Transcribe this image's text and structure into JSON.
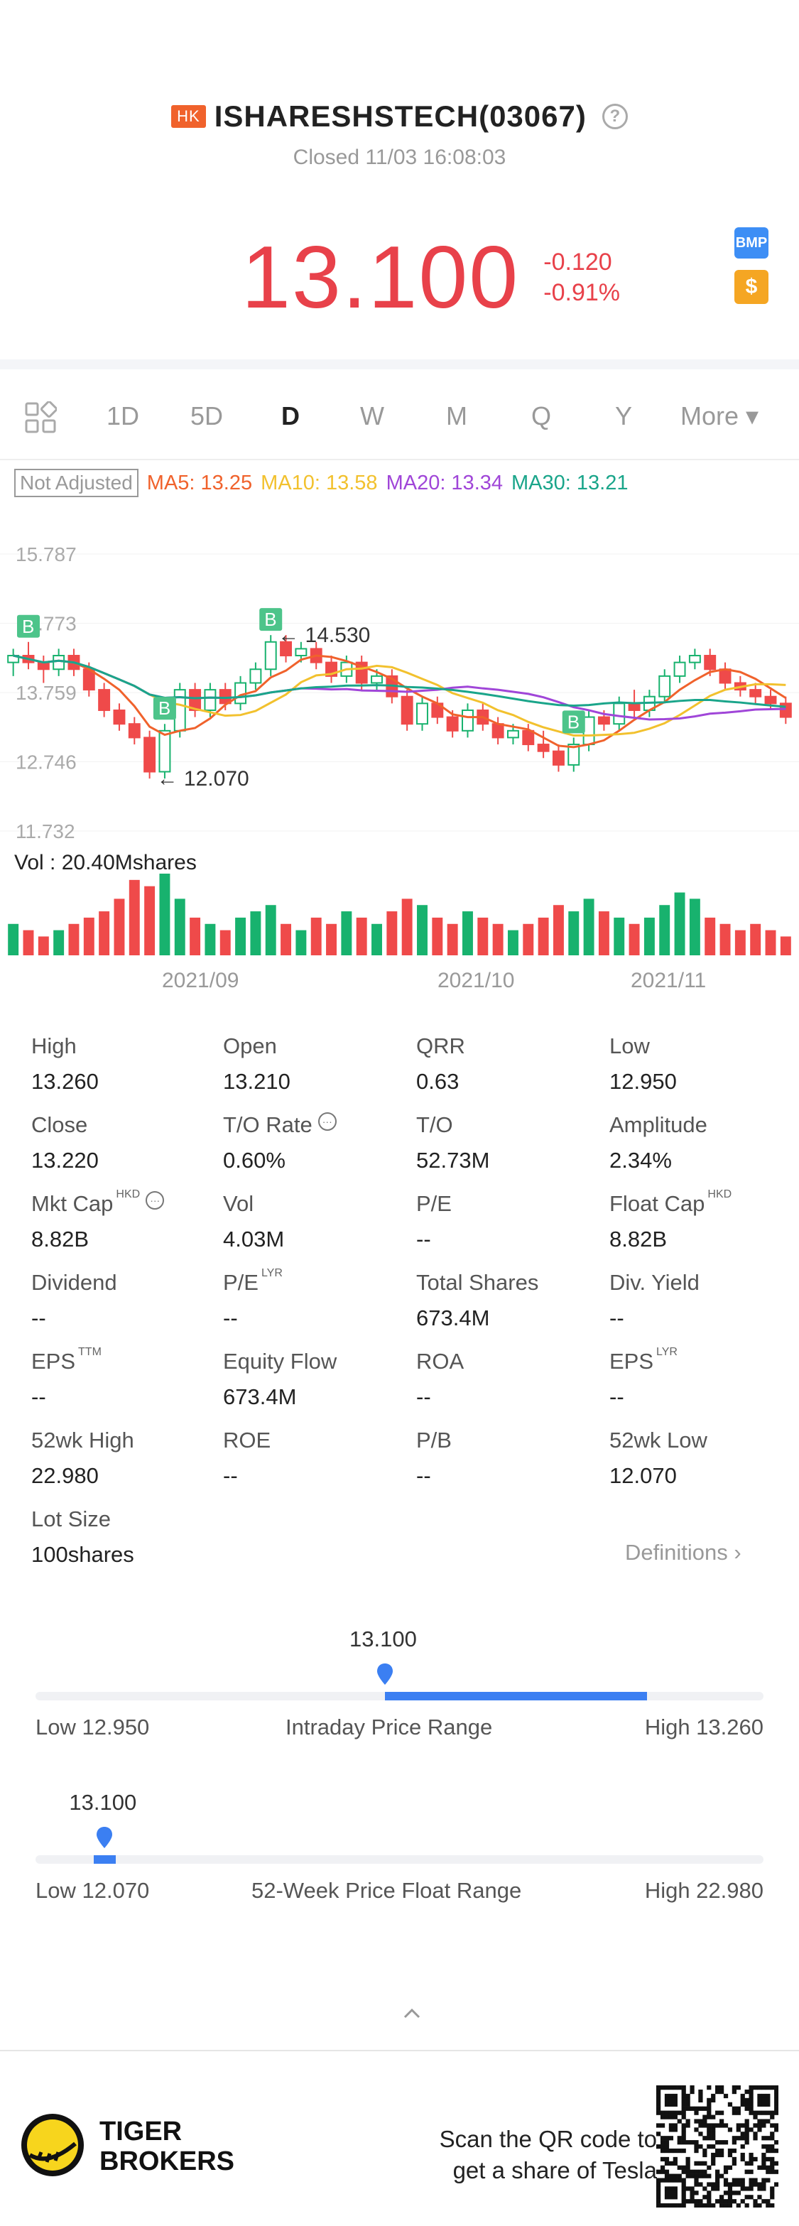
{
  "header": {
    "market_badge": "HK",
    "title": "ISHARESHSTECH(03067)",
    "help_glyph": "?",
    "status": "Closed 11/03 16:08:03",
    "price": "13.100",
    "change": "-0.120",
    "change_pct": "-0.91%",
    "bmp_label": "BMP",
    "dollar_label": "$"
  },
  "tabs": [
    "1D",
    "5D",
    "D",
    "W",
    "M",
    "Q",
    "Y",
    "More ▾"
  ],
  "active_tab": "D",
  "ma": {
    "adjust": "Not Adjusted",
    "ma5": "MA5: 13.25",
    "ma10": "MA10: 13.58",
    "ma20": "MA20: 13.34",
    "ma30": "MA30: 13.21",
    "colors": {
      "ma5": "#f0622c",
      "ma10": "#f2c12e",
      "ma20": "#a046d8",
      "ma30": "#1aa58a",
      "up": "#18b26e",
      "down": "#ef4a4a"
    }
  },
  "chart_data": {
    "type": "candlestick",
    "y_ticks": [
      "15.787",
      "14.773",
      "13.759",
      "12.746",
      "11.732"
    ],
    "ylim": [
      11.732,
      15.787
    ],
    "x_ticks": [
      "2021/09",
      "2021/10",
      "2021/11"
    ],
    "annotations": {
      "high": "14.530",
      "low": "12.070",
      "buy_marker": "B"
    },
    "volume_label": "Vol  : 20.40Mshares",
    "candles": [
      [
        14.2,
        14.4,
        14.0,
        14.3
      ],
      [
        14.3,
        14.5,
        14.1,
        14.2
      ],
      [
        14.2,
        14.3,
        13.9,
        14.1
      ],
      [
        14.1,
        14.4,
        14.0,
        14.3
      ],
      [
        14.3,
        14.4,
        14.0,
        14.1
      ],
      [
        14.1,
        14.2,
        13.7,
        13.8
      ],
      [
        13.8,
        13.9,
        13.4,
        13.5
      ],
      [
        13.5,
        13.6,
        13.2,
        13.3
      ],
      [
        13.3,
        13.4,
        13.0,
        13.1
      ],
      [
        13.1,
        13.2,
        12.5,
        12.6
      ],
      [
        12.6,
        13.3,
        12.5,
        13.2
      ],
      [
        13.2,
        13.9,
        13.1,
        13.8
      ],
      [
        13.8,
        13.9,
        13.4,
        13.5
      ],
      [
        13.5,
        13.9,
        13.4,
        13.8
      ],
      [
        13.8,
        13.9,
        13.5,
        13.6
      ],
      [
        13.6,
        14.0,
        13.5,
        13.9
      ],
      [
        13.9,
        14.2,
        13.8,
        14.1
      ],
      [
        14.1,
        14.6,
        14.0,
        14.5
      ],
      [
        14.5,
        14.6,
        14.2,
        14.3
      ],
      [
        14.3,
        14.5,
        14.2,
        14.4
      ],
      [
        14.4,
        14.5,
        14.1,
        14.2
      ],
      [
        14.2,
        14.3,
        13.9,
        14.0
      ],
      [
        14.0,
        14.3,
        13.9,
        14.2
      ],
      [
        14.2,
        14.3,
        13.8,
        13.9
      ],
      [
        13.9,
        14.1,
        13.8,
        14.0
      ],
      [
        14.0,
        14.1,
        13.6,
        13.7
      ],
      [
        13.7,
        13.8,
        13.2,
        13.3
      ],
      [
        13.3,
        13.7,
        13.2,
        13.6
      ],
      [
        13.6,
        13.7,
        13.3,
        13.4
      ],
      [
        13.4,
        13.5,
        13.1,
        13.2
      ],
      [
        13.2,
        13.6,
        13.1,
        13.5
      ],
      [
        13.5,
        13.6,
        13.2,
        13.3
      ],
      [
        13.3,
        13.4,
        13.0,
        13.1
      ],
      [
        13.1,
        13.3,
        13.0,
        13.2
      ],
      [
        13.2,
        13.3,
        12.9,
        13.0
      ],
      [
        13.0,
        13.2,
        12.8,
        12.9
      ],
      [
        12.9,
        13.0,
        12.6,
        12.7
      ],
      [
        12.7,
        13.1,
        12.6,
        13.0
      ],
      [
        13.0,
        13.5,
        12.9,
        13.4
      ],
      [
        13.4,
        13.5,
        13.2,
        13.3
      ],
      [
        13.3,
        13.7,
        13.2,
        13.6
      ],
      [
        13.6,
        13.8,
        13.4,
        13.5
      ],
      [
        13.5,
        13.8,
        13.4,
        13.7
      ],
      [
        13.7,
        14.1,
        13.6,
        14.0
      ],
      [
        14.0,
        14.3,
        13.9,
        14.2
      ],
      [
        14.2,
        14.4,
        14.1,
        14.3
      ],
      [
        14.3,
        14.4,
        14.0,
        14.1
      ],
      [
        14.1,
        14.2,
        13.8,
        13.9
      ],
      [
        13.9,
        14.0,
        13.7,
        13.8
      ],
      [
        13.8,
        13.9,
        13.6,
        13.7
      ],
      [
        13.7,
        13.8,
        13.5,
        13.6
      ],
      [
        13.6,
        13.7,
        13.3,
        13.4
      ]
    ],
    "volumes": [
      5,
      4,
      3,
      4,
      5,
      6,
      7,
      9,
      12,
      11,
      13,
      9,
      6,
      5,
      4,
      6,
      7,
      8,
      5,
      4,
      6,
      5,
      7,
      6,
      5,
      7,
      9,
      8,
      6,
      5,
      7,
      6,
      5,
      4,
      5,
      6,
      8,
      7,
      9,
      7,
      6,
      5,
      6,
      8,
      10,
      9,
      6,
      5,
      4,
      5,
      4,
      3
    ]
  },
  "stats": [
    {
      "label": "High",
      "value": "13.260"
    },
    {
      "label": "Open",
      "value": "13.210"
    },
    {
      "label": "QRR",
      "value": "0.63"
    },
    {
      "label": "Low",
      "value": "12.950"
    },
    {
      "label": "Close",
      "value": "13.220"
    },
    {
      "label": "T/O Rate",
      "value": "0.60%"
    },
    {
      "label": "T/O",
      "value": "52.73M"
    },
    {
      "label": "Amplitude",
      "value": "2.34%"
    },
    {
      "label": "Mkt Cap",
      "value": "8.82B",
      "sup": "HKD"
    },
    {
      "label": "Vol",
      "value": "4.03M"
    },
    {
      "label": "P/E",
      "value": "--"
    },
    {
      "label": "Float Cap",
      "value": "8.82B",
      "sup": "HKD"
    },
    {
      "label": "Dividend",
      "value": "--"
    },
    {
      "label": "P/E",
      "value": "--",
      "sup": "LYR"
    },
    {
      "label": "Total Shares",
      "value": "673.4M"
    },
    {
      "label": "Div. Yield",
      "value": "--"
    },
    {
      "label": "EPS",
      "value": "--",
      "sup": "TTM"
    },
    {
      "label": "Equity Flow",
      "value": "673.4M"
    },
    {
      "label": "ROA",
      "value": "--"
    },
    {
      "label": "EPS",
      "value": "--",
      "sup": "LYR"
    },
    {
      "label": "52wk High",
      "value": "22.980"
    },
    {
      "label": "ROE",
      "value": "--"
    },
    {
      "label": "P/B",
      "value": "--"
    },
    {
      "label": "52wk Low",
      "value": "12.070"
    },
    {
      "label": "Lot Size",
      "value": "100shares"
    }
  ],
  "definitions_label": "Definitions",
  "intraday_range": {
    "current": "13.100",
    "low": "Low 12.950",
    "title": "Intraday Price Range",
    "high": "High 13.260",
    "fill_start": 0.48,
    "fill_end": 0.84,
    "marker": 0.48
  },
  "week52_range": {
    "current": "13.100",
    "low": "Low 12.070",
    "title": "52-Week Price Float Range",
    "high": "High 22.980",
    "fill_start": 0.08,
    "fill_end": 0.11,
    "marker": 0.095
  },
  "footer": {
    "brand_line1": "TIGER",
    "brand_line2": "BROKERS",
    "scan_line1": "Scan the QR code to",
    "scan_line2": "get a share of Tesla"
  }
}
